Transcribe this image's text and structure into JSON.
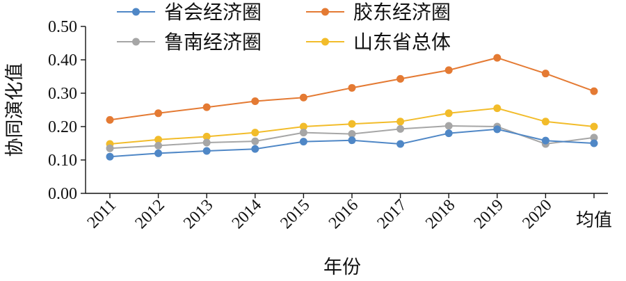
{
  "chart_data": {
    "type": "line",
    "title": "",
    "xlabel": "年份",
    "ylabel": "协同演化值",
    "categories": [
      "2011",
      "2012",
      "2013",
      "2014",
      "2015",
      "2016",
      "2017",
      "2018",
      "2019",
      "2020",
      "均值"
    ],
    "ylim": [
      0,
      0.5
    ],
    "yticks": [
      "0.00",
      "0.10",
      "0.20",
      "0.30",
      "0.40",
      "0.50"
    ],
    "grid": false,
    "legend_position": "top",
    "series": [
      {
        "name": "省会经济圈",
        "color": "#4f87c6",
        "values": [
          0.11,
          0.12,
          0.127,
          0.133,
          0.155,
          0.159,
          0.148,
          0.18,
          0.192,
          0.158,
          0.15
        ]
      },
      {
        "name": "胶东经济圈",
        "color": "#e47a33",
        "values": [
          0.22,
          0.24,
          0.258,
          0.276,
          0.287,
          0.316,
          0.343,
          0.369,
          0.406,
          0.359,
          0.306
        ]
      },
      {
        "name": "鲁南经济圈",
        "color": "#a6a6a6",
        "values": [
          0.135,
          0.143,
          0.152,
          0.156,
          0.182,
          0.178,
          0.193,
          0.202,
          0.2,
          0.148,
          0.167
        ]
      },
      {
        "name": "山东省总体",
        "color": "#f2bc2a",
        "values": [
          0.148,
          0.161,
          0.17,
          0.182,
          0.2,
          0.208,
          0.215,
          0.24,
          0.255,
          0.215,
          0.2
        ]
      }
    ]
  }
}
